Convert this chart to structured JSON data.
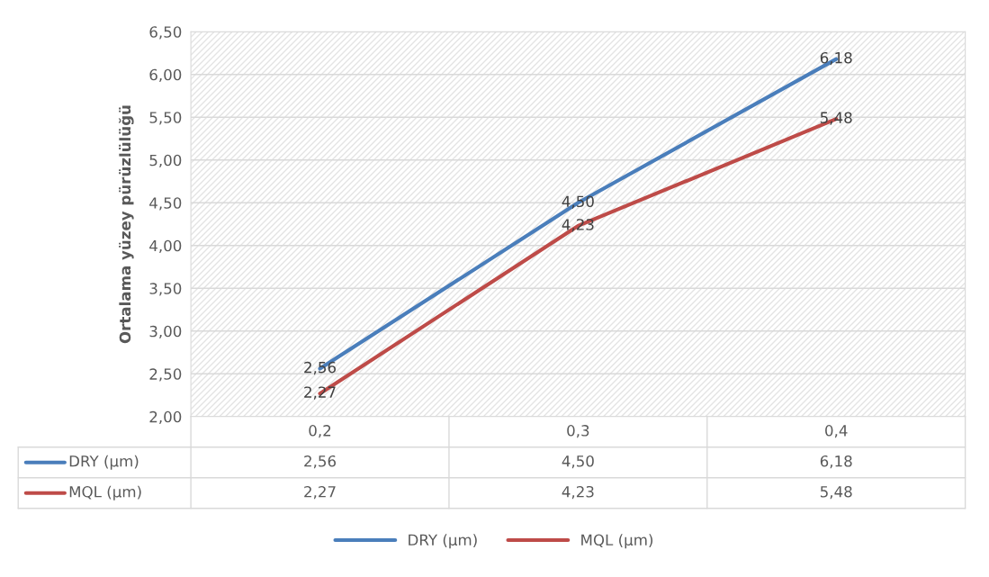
{
  "chart_data": {
    "type": "line",
    "ylabel": "Ortalama yüzey pürüzlülüğü",
    "categories": [
      "0,2",
      "0,3",
      "0,4"
    ],
    "series": [
      {
        "name": "DRY (µm)",
        "color": "#4a7ebb",
        "values": [
          2.56,
          4.5,
          6.18
        ],
        "value_labels": [
          "2,56",
          "4,50",
          "6,18"
        ]
      },
      {
        "name": "MQL (µm)",
        "color": "#be4b48",
        "values": [
          2.27,
          4.23,
          5.48
        ],
        "value_labels": [
          "2,27",
          "4,23",
          "5,48"
        ]
      }
    ],
    "ylim": [
      2,
      6.5
    ],
    "yticks": [
      {
        "value": 2,
        "label": "2,00"
      },
      {
        "value": 2.5,
        "label": "2,50"
      },
      {
        "value": 3,
        "label": "3,00"
      },
      {
        "value": 3.5,
        "label": "3,50"
      },
      {
        "value": 4,
        "label": "4,00"
      },
      {
        "value": 4.5,
        "label": "4,50"
      },
      {
        "value": 5,
        "label": "5,00"
      },
      {
        "value": 5.5,
        "label": "5,50"
      },
      {
        "value": 6,
        "label": "6,00"
      },
      {
        "value": 6.5,
        "label": "6,50"
      }
    ],
    "grid": "y",
    "legend": "bottom",
    "marker": "none",
    "line_style": "solid"
  }
}
